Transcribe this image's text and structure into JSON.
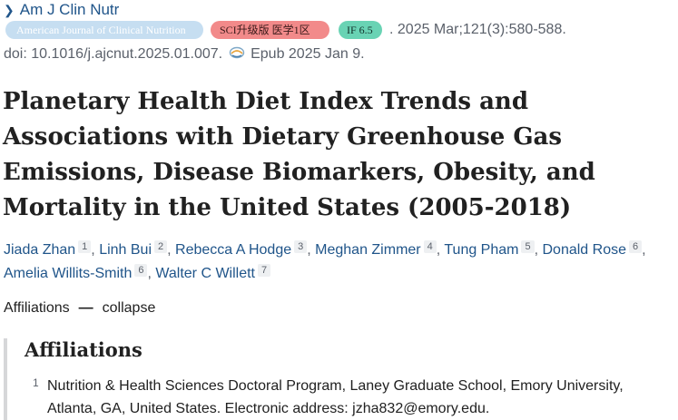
{
  "journal": {
    "name": "Am J Clin Nutr"
  },
  "tags": {
    "journal_full": "American Journal of Clinical Nutrition",
    "sci": "SCI升级版 医学1区",
    "impact_factor": "IF 6.5"
  },
  "citation": ". 2025 Mar;121(3):580-588.",
  "doi": "doi: 10.1016/j.ajcnut.2025.01.007.",
  "epub": "Epub 2025 Jan 9.",
  "title": "Planetary Health Diet Index Trends and Associations with Dietary Greenhouse Gas Emissions, Disease Biomarkers, Obesity, and Mortality in the United States (2005-2018)",
  "authors": [
    {
      "name": "Jiada Zhan",
      "aff": "1"
    },
    {
      "name": "Linh Bui",
      "aff": "2"
    },
    {
      "name": "Rebecca A Hodge",
      "aff": "3"
    },
    {
      "name": "Meghan Zimmer",
      "aff": "4"
    },
    {
      "name": "Tung Pham",
      "aff": "5"
    },
    {
      "name": "Donald Rose",
      "aff": "6"
    },
    {
      "name": "Amelia Willits-Smith",
      "aff": "6"
    },
    {
      "name": "Walter C Willett",
      "aff": "7"
    }
  ],
  "affiliations_toggle": {
    "label": "Affiliations",
    "sep": "—",
    "action": "collapse"
  },
  "affiliations": {
    "heading": "Affiliations",
    "items": [
      {
        "num": "1",
        "text": "Nutrition & Health Sciences Doctoral Program, Laney Graduate School, Emory University, Atlanta, GA, United States. Electronic address: jzha832@emory.edu."
      }
    ]
  },
  "colors": {
    "link": "#20558a",
    "sci_tag": "#f28a8a",
    "if_tag": "#69d3b4",
    "journal_tag": "#c6def1"
  }
}
